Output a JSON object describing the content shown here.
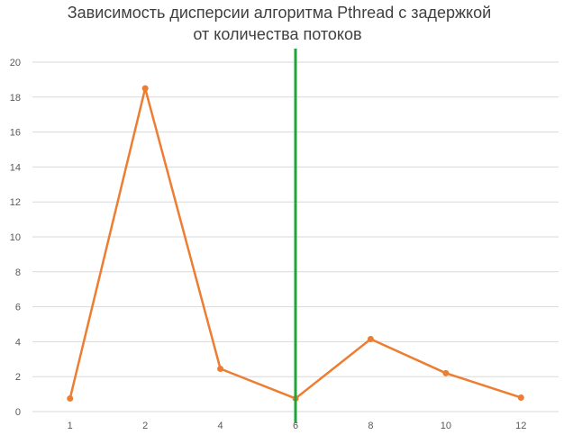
{
  "chart_data": {
    "type": "line",
    "title_lines": [
      "Зависимость дисперсии алгоритма Pthread с задержкой",
      "от количества потоков"
    ],
    "xlabel": "",
    "ylabel": "",
    "categories": [
      "1",
      "2",
      "4",
      "6",
      "8",
      "10",
      "12"
    ],
    "series": [
      {
        "values": [
          0.75,
          18.5,
          2.45,
          0.75,
          4.15,
          2.2,
          0.8
        ],
        "color": "#ED7D31"
      }
    ],
    "ylim": [
      0,
      20
    ],
    "yticks": [
      0,
      2,
      4,
      6,
      8,
      10,
      12,
      14,
      16,
      18,
      20
    ],
    "grid": "horizontal",
    "legend": "none",
    "marker_line": {
      "category": "6",
      "color": "#1FA33B"
    }
  }
}
